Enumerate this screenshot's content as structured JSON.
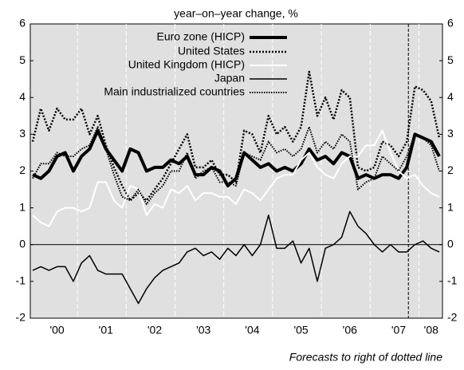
{
  "chart_data": {
    "type": "line",
    "title": "year–on–year change, %",
    "annotation": "Forecasts to right of dotted line",
    "categories": [
      null,
      null,
      null,
      "'00",
      null,
      null,
      null,
      null,
      null,
      "'01",
      null,
      null,
      null,
      null,
      null,
      "'02",
      null,
      null,
      null,
      null,
      null,
      "'03",
      null,
      null,
      null,
      null,
      null,
      "'04",
      null,
      null,
      null,
      null,
      null,
      "'05",
      null,
      null,
      null,
      null,
      null,
      "'06",
      null,
      null,
      null,
      null,
      null,
      "'07",
      null,
      null,
      null,
      "'08",
      null
    ],
    "ylim": [
      -2,
      6
    ],
    "yticks": [
      -2,
      -1,
      0,
      1,
      2,
      3,
      4,
      5,
      6
    ],
    "series": [
      {
        "name": "Euro zone (HICP)",
        "color": "#000000",
        "style": "thick",
        "values": [
          1.9,
          1.8,
          2.0,
          2.4,
          2.5,
          2.0,
          2.4,
          2.6,
          3.1,
          2.6,
          2.3,
          2.0,
          2.6,
          2.5,
          2.0,
          2.1,
          2.1,
          2.3,
          2.2,
          2.4,
          1.9,
          1.9,
          2.1,
          2.0,
          1.6,
          1.8,
          2.5,
          2.3,
          2.1,
          2.2,
          2.0,
          2.1,
          2.0,
          2.2,
          2.6,
          2.3,
          2.4,
          2.2,
          2.5,
          2.4,
          1.8,
          1.9,
          1.8,
          1.9,
          1.9,
          1.8,
          2.1,
          3.0,
          2.9,
          2.8,
          2.4
        ]
      },
      {
        "name": "United States",
        "color": "#000000",
        "style": "dotted",
        "values": [
          2.8,
          3.7,
          3.1,
          3.7,
          3.4,
          3.4,
          3.7,
          3.0,
          3.5,
          2.7,
          2.1,
          1.6,
          1.2,
          1.4,
          1.2,
          1.5,
          1.8,
          2.2,
          2.6,
          3.0,
          2.1,
          2.1,
          2.3,
          1.9,
          1.9,
          1.7,
          3.1,
          3.0,
          2.5,
          3.5,
          3.0,
          3.2,
          2.8,
          3.2,
          4.7,
          3.5,
          4.0,
          3.4,
          4.2,
          4.0,
          2.1,
          2.0,
          2.1,
          2.8,
          2.7,
          2.4,
          2.8,
          4.3,
          4.2,
          3.9,
          2.9
        ]
      },
      {
        "name": "United Kingdom (HICP)",
        "color": "#ffffff",
        "style": "solid",
        "values": [
          0.8,
          0.6,
          0.5,
          0.9,
          1.0,
          1.0,
          0.9,
          1.0,
          1.7,
          1.7,
          1.2,
          1.0,
          1.6,
          1.5,
          0.8,
          1.1,
          1.0,
          1.5,
          1.4,
          1.6,
          1.2,
          1.4,
          1.4,
          1.3,
          1.3,
          1.1,
          1.5,
          1.4,
          1.2,
          1.5,
          1.8,
          1.9,
          1.9,
          2.3,
          2.5,
          2.1,
          1.9,
          1.8,
          2.2,
          2.4,
          2.4,
          2.7,
          2.7,
          3.1,
          2.5,
          2.0,
          1.8,
          1.9,
          1.6,
          1.4,
          1.3
        ]
      },
      {
        "name": "Japan",
        "color": "#000000",
        "style": "thin",
        "values": [
          -0.7,
          -0.6,
          -0.7,
          -0.6,
          -0.6,
          -1.0,
          -0.5,
          -0.3,
          -0.7,
          -0.8,
          -0.8,
          -0.8,
          -1.2,
          -1.6,
          -1.2,
          -0.9,
          -0.7,
          -0.6,
          -0.5,
          -0.2,
          -0.1,
          -0.3,
          -0.2,
          -0.4,
          -0.1,
          -0.3,
          0.0,
          -0.3,
          0.0,
          0.8,
          -0.1,
          -0.1,
          0.1,
          -0.5,
          -0.1,
          -1.0,
          -0.1,
          0.0,
          0.2,
          0.9,
          0.5,
          0.3,
          0.0,
          -0.2,
          0.0,
          -0.2,
          -0.2,
          0.0,
          0.1,
          -0.1,
          -0.2
        ]
      },
      {
        "name": "Main industrialized countries",
        "color": "#000000",
        "style": "finedotted",
        "values": [
          1.8,
          2.2,
          2.2,
          2.5,
          2.4,
          2.4,
          2.6,
          2.7,
          3.2,
          2.6,
          1.9,
          1.3,
          1.2,
          1.5,
          1.1,
          1.4,
          1.6,
          2.0,
          2.0,
          2.5,
          1.8,
          2.0,
          2.1,
          1.7,
          1.7,
          1.6,
          2.5,
          2.4,
          2.3,
          2.8,
          2.5,
          2.6,
          2.4,
          2.6,
          3.2,
          2.5,
          2.8,
          2.6,
          3.0,
          2.8,
          1.5,
          1.7,
          1.8,
          2.4,
          2.2,
          2.0,
          2.4,
          3.0,
          2.9,
          2.7,
          2.0
        ]
      }
    ]
  }
}
